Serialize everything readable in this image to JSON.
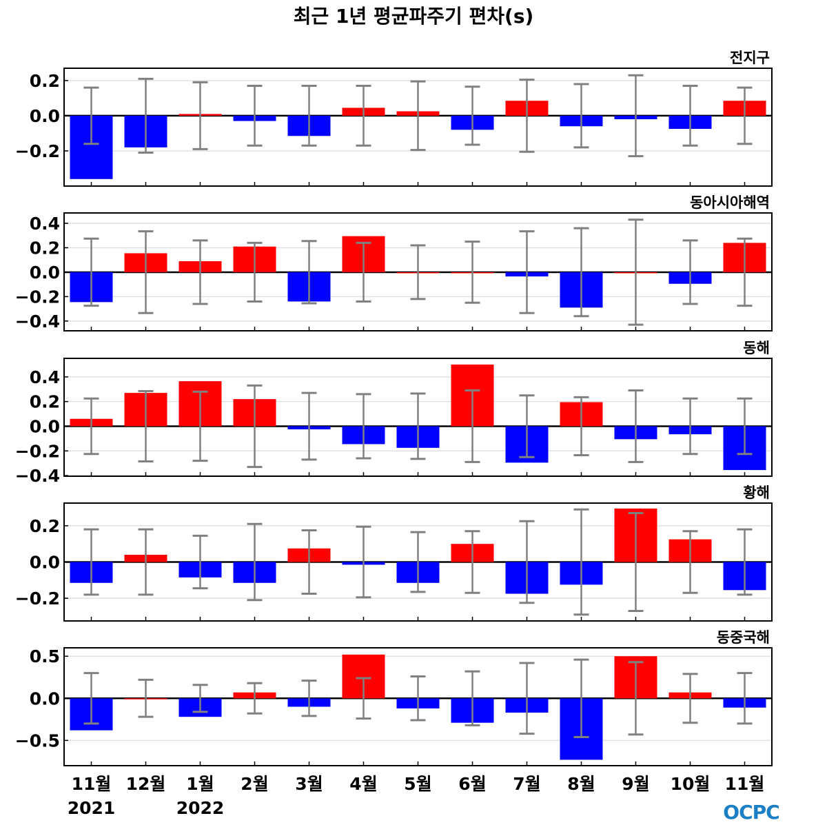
{
  "chart_data": {
    "type": "bar",
    "title": "최근 1년 평균파주기 편차(s)",
    "categories": [
      "11월",
      "12월",
      "1월",
      "2월",
      "3월",
      "4월",
      "5월",
      "6월",
      "7월",
      "8월",
      "9월",
      "10월",
      "11월"
    ],
    "year_labels": [
      {
        "category_index": 0,
        "label": "2021"
      },
      {
        "category_index": 2,
        "label": "2022"
      }
    ],
    "positive_color": "#ff0000",
    "negative_color": "#0000ff",
    "errorbar_color": "#808080",
    "panels": [
      {
        "title": "전지구",
        "ylim": [
          -0.4,
          0.27
        ],
        "yticks": [
          0.2,
          0.0,
          -0.2
        ],
        "ytick_labels": [
          "0.2",
          "0.0",
          "−0.2"
        ],
        "values": [
          -0.36,
          -0.18,
          0.01,
          -0.03,
          -0.115,
          0.045,
          0.025,
          -0.08,
          0.085,
          -0.06,
          -0.02,
          -0.075,
          0.085
        ],
        "errors": [
          0.16,
          0.21,
          0.19,
          0.17,
          0.17,
          0.17,
          0.195,
          0.165,
          0.205,
          0.18,
          0.23,
          0.17,
          0.16
        ]
      },
      {
        "title": "동아시아해역",
        "ylim": [
          -0.48,
          0.485
        ],
        "yticks": [
          0.4,
          0.2,
          0.0,
          -0.2,
          -0.4
        ],
        "ytick_labels": [
          "0.4",
          "0.2",
          "0.0",
          "−0.2",
          "−0.4"
        ],
        "values": [
          -0.245,
          0.155,
          0.09,
          0.21,
          -0.24,
          0.295,
          0.0,
          0.0,
          -0.035,
          -0.29,
          0.0,
          -0.095,
          0.24
        ],
        "errors": [
          0.275,
          0.335,
          0.26,
          0.24,
          0.255,
          0.24,
          0.22,
          0.25,
          0.335,
          0.36,
          0.43,
          0.26,
          0.275
        ]
      },
      {
        "title": "동해",
        "ylim": [
          -0.405,
          0.55
        ],
        "yticks": [
          0.4,
          0.2,
          0.0,
          -0.2,
          -0.4
        ],
        "ytick_labels": [
          "0.4",
          "0.2",
          "0.0",
          "−0.2",
          "−0.4"
        ],
        "values": [
          0.06,
          0.27,
          0.365,
          0.22,
          -0.025,
          -0.145,
          -0.175,
          0.5,
          -0.295,
          0.195,
          -0.105,
          -0.065,
          -0.355
        ],
        "errors": [
          0.225,
          0.285,
          0.28,
          0.33,
          0.27,
          0.26,
          0.265,
          0.29,
          0.25,
          0.235,
          0.29,
          0.225,
          0.225
        ]
      },
      {
        "title": "황해",
        "ylim": [
          -0.325,
          0.325
        ],
        "yticks": [
          0.2,
          0.0,
          -0.2
        ],
        "ytick_labels": [
          "0.2",
          "0.0",
          "−0.2"
        ],
        "values": [
          -0.115,
          0.04,
          -0.085,
          -0.115,
          0.075,
          -0.015,
          -0.115,
          0.1,
          -0.175,
          -0.125,
          0.295,
          0.125,
          -0.155
        ],
        "errors": [
          0.18,
          0.18,
          0.145,
          0.21,
          0.175,
          0.195,
          0.165,
          0.17,
          0.225,
          0.29,
          0.27,
          0.17,
          0.18
        ]
      },
      {
        "title": "동중국해",
        "ylim": [
          -0.8,
          0.6
        ],
        "yticks": [
          0.5,
          0.0,
          -0.5
        ],
        "ytick_labels": [
          "0.5",
          "0.0",
          "−0.5"
        ],
        "values": [
          -0.38,
          0.0,
          -0.22,
          0.07,
          -0.1,
          0.52,
          -0.12,
          -0.29,
          -0.17,
          -0.73,
          0.5,
          0.07,
          -0.11
        ],
        "errors": [
          0.3,
          0.22,
          0.16,
          0.18,
          0.21,
          0.24,
          0.26,
          0.32,
          0.42,
          0.46,
          0.43,
          0.29,
          0.3
        ]
      }
    ]
  },
  "logo": "OCPC"
}
